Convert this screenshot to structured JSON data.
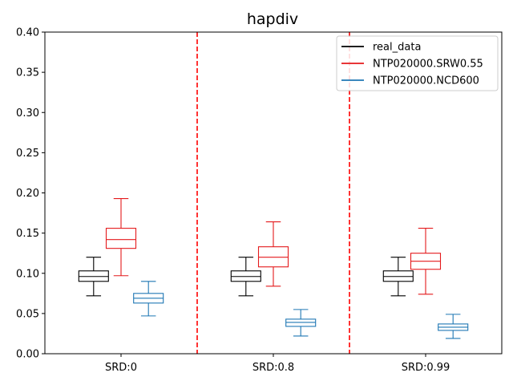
{
  "chart_data": {
    "type": "boxplot",
    "title": "hapdiv",
    "xlabel": "",
    "ylabel": "",
    "categories": [
      "SRD:0",
      "SRD:0.8",
      "SRD:0.99"
    ],
    "ylim": [
      0.0,
      0.4
    ],
    "yticks": [
      "0.00",
      "0.05",
      "0.10",
      "0.15",
      "0.20",
      "0.25",
      "0.30",
      "0.35",
      "0.40"
    ],
    "grid": false,
    "legend_position": "upper-right",
    "separators": {
      "color": "#ff0000",
      "style": "dashed"
    },
    "series": [
      {
        "name": "real_data",
        "color": "#000000",
        "boxes": [
          {
            "whisker_low": 0.072,
            "q1": 0.09,
            "median": 0.096,
            "q3": 0.103,
            "whisker_high": 0.12
          },
          {
            "whisker_low": 0.072,
            "q1": 0.09,
            "median": 0.096,
            "q3": 0.103,
            "whisker_high": 0.12
          },
          {
            "whisker_low": 0.072,
            "q1": 0.09,
            "median": 0.096,
            "q3": 0.103,
            "whisker_high": 0.12
          }
        ]
      },
      {
        "name": "NTP020000.SRW0.55",
        "color": "#e41a1c",
        "boxes": [
          {
            "whisker_low": 0.097,
            "q1": 0.131,
            "median": 0.142,
            "q3": 0.156,
            "whisker_high": 0.193
          },
          {
            "whisker_low": 0.084,
            "q1": 0.108,
            "median": 0.12,
            "q3": 0.133,
            "whisker_high": 0.164
          },
          {
            "whisker_low": 0.074,
            "q1": 0.105,
            "median": 0.115,
            "q3": 0.125,
            "whisker_high": 0.156
          }
        ]
      },
      {
        "name": "NTP020000.NCD600",
        "color": "#1f77b4",
        "boxes": [
          {
            "whisker_low": 0.047,
            "q1": 0.063,
            "median": 0.069,
            "q3": 0.075,
            "whisker_high": 0.09
          },
          {
            "whisker_low": 0.022,
            "q1": 0.034,
            "median": 0.039,
            "q3": 0.043,
            "whisker_high": 0.055
          },
          {
            "whisker_low": 0.019,
            "q1": 0.029,
            "median": 0.033,
            "q3": 0.037,
            "whisker_high": 0.049
          }
        ]
      }
    ]
  }
}
